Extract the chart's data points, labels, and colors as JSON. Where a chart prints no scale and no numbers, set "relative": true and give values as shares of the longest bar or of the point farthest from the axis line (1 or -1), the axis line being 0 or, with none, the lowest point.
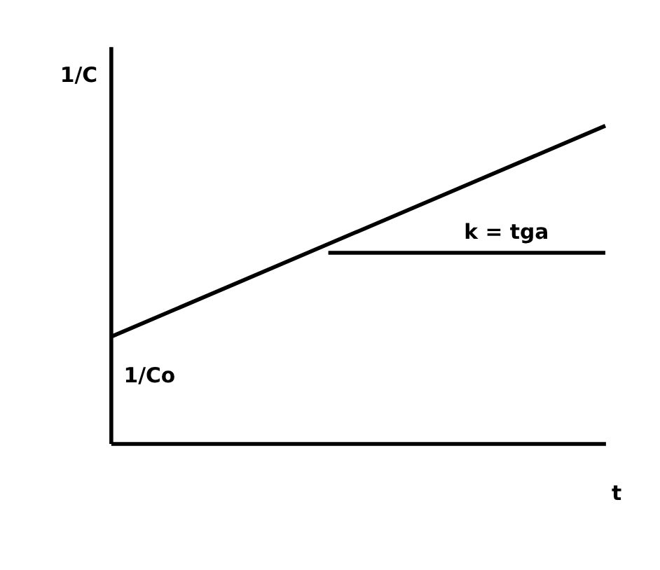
{
  "chart_data": {
    "type": "line",
    "relative": true,
    "xlabel": "t",
    "ylabel": "1/C",
    "tick_labels": false,
    "grid": false,
    "marker": "none",
    "line_style": "solid",
    "categories": [
      null,
      null
    ],
    "series": [
      {
        "color": "#000000",
        "values": [
          0.335,
          1
        ]
      }
    ],
    "ref_lines": [
      {
        "axis": "y",
        "value": 0.6,
        "label": "k = tga",
        "color": "#000000"
      }
    ],
    "annotations": [
      "1/Co"
    ]
  }
}
